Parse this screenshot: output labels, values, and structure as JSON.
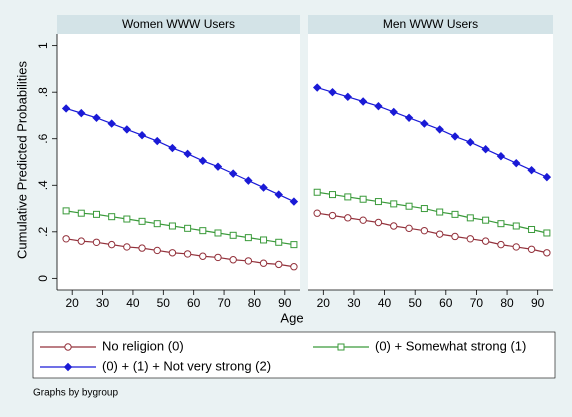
{
  "chart_data": [
    {
      "type": "line",
      "title": "Women WWW Users",
      "ylabel": "Cumulative Predicted Probabilities",
      "xlabel": "Age",
      "x": [
        18,
        23,
        28,
        33,
        38,
        43,
        48,
        53,
        58,
        63,
        68,
        73,
        78,
        83,
        88,
        93
      ],
      "xlim": [
        15,
        95
      ],
      "xticks": [
        20,
        30,
        40,
        50,
        60,
        70,
        80,
        90
      ],
      "ylim": [
        -0.05,
        1.05
      ],
      "yticks": [
        0,
        {
          "value": 0.2,
          "label": ".2"
        },
        {
          "value": 0.4,
          "label": ".4"
        },
        {
          "value": 0.6,
          "label": ".6"
        },
        {
          "value": 0.8,
          "label": ".8"
        },
        1
      ],
      "legend": "bottom",
      "series": [
        {
          "name": "No religion (0)",
          "color": "#93313b",
          "marker": "circle",
          "values": [
            0.17,
            0.16,
            0.155,
            0.145,
            0.135,
            0.13,
            0.12,
            0.11,
            0.105,
            0.095,
            0.09,
            0.08,
            0.075,
            0.065,
            0.06,
            0.05
          ]
        },
        {
          "name": "(0) + Somewhat strong (1)",
          "color": "#3a9a3a",
          "marker": "square",
          "values": [
            0.29,
            0.28,
            0.275,
            0.265,
            0.255,
            0.245,
            0.235,
            0.225,
            0.215,
            0.205,
            0.195,
            0.185,
            0.175,
            0.165,
            0.155,
            0.145
          ]
        },
        {
          "name": "(0) + (1) + Not very strong (2)",
          "color": "#1a1ad6",
          "marker": "diamond",
          "values": [
            0.73,
            0.71,
            0.69,
            0.665,
            0.64,
            0.615,
            0.59,
            0.56,
            0.535,
            0.505,
            0.48,
            0.45,
            0.42,
            0.39,
            0.36,
            0.33
          ]
        }
      ]
    },
    {
      "type": "line",
      "title": "Men WWW Users",
      "x": [
        18,
        23,
        28,
        33,
        38,
        43,
        48,
        53,
        58,
        63,
        68,
        73,
        78,
        83,
        88,
        93
      ],
      "xlim": [
        15,
        95
      ],
      "xticks": [
        20,
        30,
        40,
        50,
        60,
        70,
        80,
        90
      ],
      "ylim": [
        -0.05,
        1.05
      ],
      "series": [
        {
          "name": "No religion (0)",
          "color": "#93313b",
          "marker": "circle",
          "values": [
            0.28,
            0.27,
            0.26,
            0.25,
            0.24,
            0.225,
            0.215,
            0.205,
            0.19,
            0.18,
            0.17,
            0.16,
            0.145,
            0.135,
            0.125,
            0.11
          ]
        },
        {
          "name": "(0) + Somewhat strong (1)",
          "color": "#3a9a3a",
          "marker": "square",
          "values": [
            0.37,
            0.36,
            0.35,
            0.34,
            0.33,
            0.32,
            0.31,
            0.3,
            0.285,
            0.275,
            0.26,
            0.25,
            0.235,
            0.225,
            0.21,
            0.195
          ]
        },
        {
          "name": "(0) + (1) + Not very strong (2)",
          "color": "#1a1ad6",
          "marker": "diamond",
          "values": [
            0.82,
            0.8,
            0.78,
            0.76,
            0.74,
            0.715,
            0.69,
            0.665,
            0.64,
            0.61,
            0.585,
            0.555,
            0.525,
            0.495,
            0.465,
            0.435
          ]
        }
      ]
    }
  ],
  "note": "Graphs by bygroup"
}
